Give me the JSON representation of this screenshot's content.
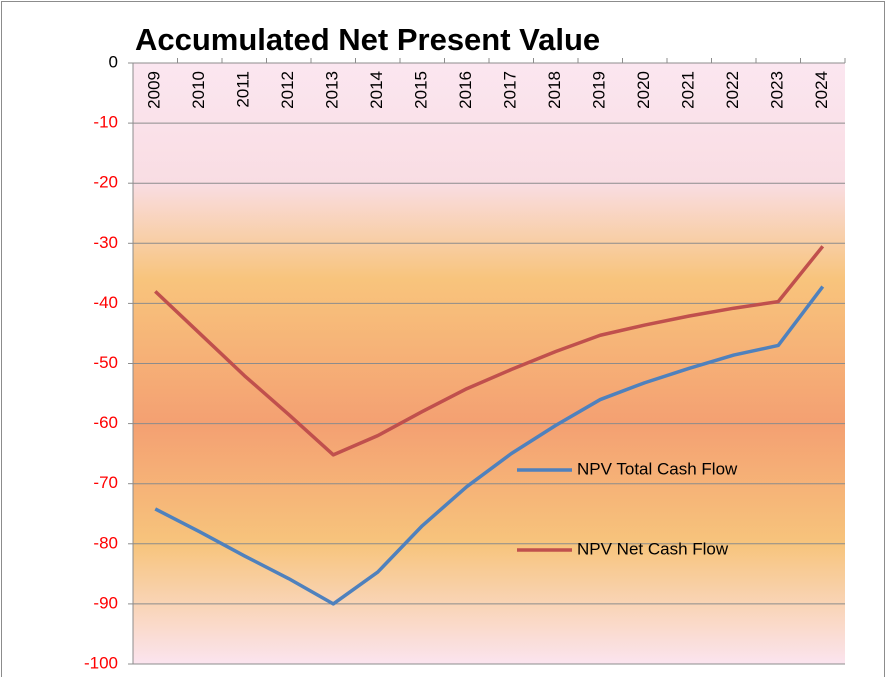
{
  "chart_data": {
    "type": "line",
    "title": "Accumulated Net Present Value",
    "categories": [
      "2009",
      "2010",
      "2011",
      "2012",
      "2013",
      "2014",
      "2015",
      "2016",
      "2017",
      "2018",
      "2019",
      "2020",
      "2021",
      "2022",
      "2023",
      "2024"
    ],
    "series": [
      {
        "name": "NPV Total Cash Flow",
        "color": "#4f81bd",
        "values": [
          -74.2,
          -78,
          -82,
          -85.8,
          -90,
          -84.7,
          -77,
          -70.5,
          -65,
          -60.3,
          -56,
          -53.2,
          -50.8,
          -48.6,
          -47,
          -37.2
        ]
      },
      {
        "name": "NPV Net Cash Flow",
        "color": "#c0504d",
        "values": [
          -38,
          -45,
          -52,
          -58.5,
          -65.2,
          -62,
          -58,
          -54.2,
          -51,
          -48,
          -45.3,
          -43.6,
          -42.1,
          -40.8,
          -39.7,
          -30.5
        ]
      }
    ],
    "ylim": [
      -100,
      0
    ],
    "yticks": [
      0,
      -10,
      -20,
      -30,
      -40,
      -50,
      -60,
      -70,
      -80,
      -90,
      -100
    ],
    "grid": true,
    "negative_tick_color": "#ff0000"
  }
}
